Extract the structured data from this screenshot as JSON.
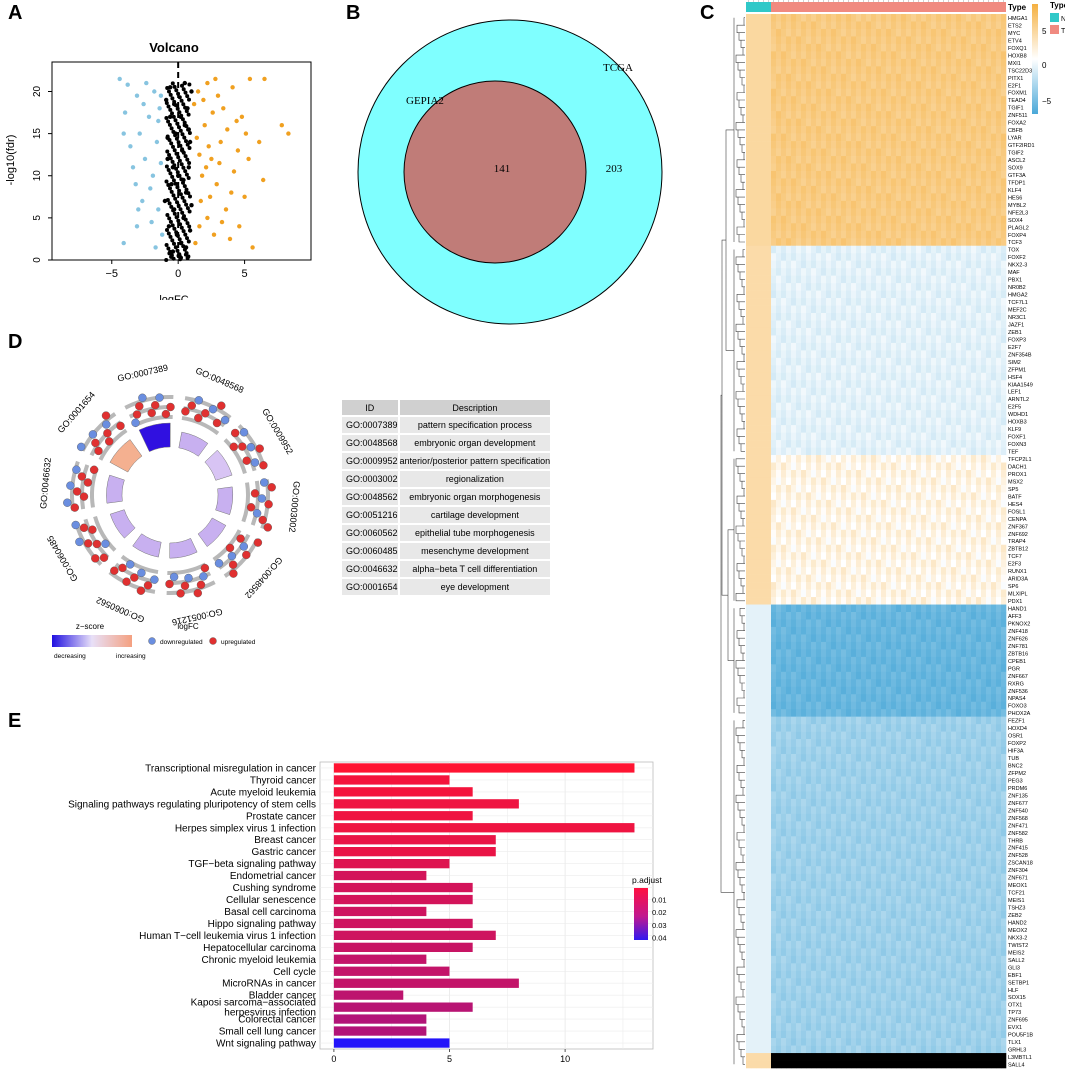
{
  "panels": {
    "A": "A",
    "B": "B",
    "C": "C",
    "D": "D",
    "E": "E"
  },
  "colors": {
    "up": "#f0a020",
    "down": "#87c4e0",
    "ns": "#000000",
    "tcga": "#7fffff",
    "gepia": "#c07c78",
    "heat_high": "#f5b040",
    "heat_low": "#4aa8d8",
    "type_n": "#30c8c8",
    "type_t": "#f08a80"
  },
  "chart_data": [
    {
      "type": "scatter",
      "panel": "A",
      "title": "Volcano",
      "xlabel": "logFC",
      "ylabel": "-log10(fdr)",
      "xlim": [
        -9.5,
        10
      ],
      "ylim": [
        0,
        23.5
      ],
      "xticks": [
        -5,
        0,
        5
      ],
      "xtick_labels": [
        "−5",
        "0",
        "5"
      ],
      "yticks": [
        0,
        5,
        10,
        15,
        20
      ],
      "ytick_labels": [
        "0",
        "5",
        "10",
        "15",
        "20"
      ],
      "threshold_x": 0,
      "series": [
        {
          "name": "upregulated",
          "color": "#f0a020",
          "points": [
            [
              1.5,
              20
            ],
            [
              2.2,
              21
            ],
            [
              3,
              19.5
            ],
            [
              4.1,
              20.5
            ],
            [
              5.4,
              21.5
            ],
            [
              6.5,
              21.5
            ],
            [
              7.8,
              16
            ],
            [
              8.3,
              15
            ],
            [
              6.1,
              14
            ],
            [
              4.5,
              13
            ],
            [
              3.2,
              14
            ],
            [
              2.5,
              12
            ],
            [
              1.8,
              10
            ],
            [
              2.9,
              9
            ],
            [
              4,
              8
            ],
            [
              5,
              7.5
            ],
            [
              6.4,
              9.5
            ],
            [
              3.6,
              6
            ],
            [
              2.2,
              5
            ],
            [
              1.6,
              4
            ],
            [
              2.7,
              3
            ],
            [
              3.9,
              2.5
            ],
            [
              5.6,
              1.5
            ],
            [
              1.3,
              2
            ],
            [
              2,
              16
            ],
            [
              2.6,
              17.5
            ],
            [
              3.4,
              18
            ],
            [
              4.8,
              17
            ],
            [
              1.4,
              14.5
            ],
            [
              2.1,
              11
            ],
            [
              3.1,
              11.5
            ],
            [
              4.2,
              10.5
            ],
            [
              5.3,
              12
            ],
            [
              1.7,
              7
            ],
            [
              2.4,
              7.5
            ],
            [
              3.3,
              4.5
            ],
            [
              4.6,
              4
            ],
            [
              1.2,
              18.5
            ],
            [
              1.9,
              19
            ],
            [
              3.7,
              15.5
            ],
            [
              2.8,
              21.5
            ],
            [
              4.4,
              16.5
            ],
            [
              5.1,
              15
            ],
            [
              1.6,
              12.5
            ],
            [
              2.3,
              13.5
            ]
          ]
        },
        {
          "name": "downregulated",
          "color": "#87c4e0",
          "points": [
            [
              -4.4,
              21.5
            ],
            [
              -3.8,
              20.8
            ],
            [
              -3.1,
              19.5
            ],
            [
              -2.4,
              21
            ],
            [
              -1.8,
              20
            ],
            [
              -1.4,
              18
            ],
            [
              -2.2,
              17
            ],
            [
              -2.9,
              15
            ],
            [
              -3.6,
              13.5
            ],
            [
              -4.1,
              15
            ],
            [
              -1.6,
              14
            ],
            [
              -2.5,
              12
            ],
            [
              -1.9,
              10
            ],
            [
              -3.2,
              9
            ],
            [
              -2.7,
              7
            ],
            [
              -1.5,
              6
            ],
            [
              -2,
              4.5
            ],
            [
              -3.1,
              4
            ],
            [
              -4.1,
              2
            ],
            [
              -1.2,
              3
            ],
            [
              -1.7,
              1.5
            ],
            [
              -1.3,
              11.5
            ],
            [
              -2.1,
              8.5
            ],
            [
              -3.4,
              11
            ],
            [
              -1.5,
              16.5
            ],
            [
              -2.6,
              18.5
            ],
            [
              -4,
              17.5
            ],
            [
              -1.3,
              19.5
            ],
            [
              -3,
              6
            ]
          ]
        },
        {
          "name": "not significant",
          "color": "#000000",
          "points": [
            [
              -0.8,
              12
            ],
            [
              -0.5,
              9
            ],
            [
              -0.3,
              6
            ],
            [
              -0.1,
              3
            ],
            [
              0.2,
              2
            ],
            [
              0.4,
              5
            ],
            [
              0.6,
              8
            ],
            [
              0.8,
              11
            ],
            [
              0.9,
              14
            ],
            [
              0.5,
              16
            ],
            [
              0.3,
              13
            ],
            [
              -0.2,
              15
            ],
            [
              -0.6,
              17
            ],
            [
              -0.9,
              19
            ],
            [
              0.7,
              18
            ],
            [
              1,
              20
            ],
            [
              -0.4,
              1
            ],
            [
              0.1,
              0.5
            ],
            [
              0.6,
              1.5
            ],
            [
              -0.7,
              4
            ],
            [
              0.9,
              3.5
            ],
            [
              -1,
              7
            ],
            [
              1,
              6.5
            ],
            [
              0,
              10
            ],
            [
              -0.4,
              11
            ],
            [
              0.4,
              9.5
            ],
            [
              -0.8,
              14.5
            ],
            [
              0.8,
              15.5
            ],
            [
              0.2,
              17
            ],
            [
              -0.3,
              18.5
            ],
            [
              0.5,
              21
            ],
            [
              -0.6,
              20.5
            ]
          ]
        }
      ]
    },
    {
      "type": "venn",
      "panel": "B",
      "sets": [
        {
          "name": "TCGA",
          "only": 203,
          "color": "#7fffff"
        },
        {
          "name": "GEPIA2",
          "only": 0,
          "color": "#c07c78"
        }
      ],
      "overlap": 141,
      "labels": [
        "TCGA",
        "GEPIA2",
        "141",
        "203"
      ]
    },
    {
      "type": "heatmap",
      "panel": "C",
      "annotation_title": "Type",
      "legend_title": "Type",
      "legend_entries": [
        {
          "label": "N",
          "color": "#30c8c8"
        },
        {
          "label": "T",
          "color": "#f08a80"
        }
      ],
      "color_scale": {
        "ticks": [
          "5",
          "0",
          "−5"
        ],
        "range": [
          -6,
          6
        ]
      },
      "genes": [
        "HMGA1",
        "ETS2",
        "MYC",
        "ETV4",
        "FOXQ1",
        "HOXB8",
        "MXI1",
        "TSC22D3",
        "PITX1",
        "E2F1",
        "FOXM1",
        "TEAD4",
        "TGIF1",
        "ZNF511",
        "FOXA2",
        "CBFB",
        "LYAR",
        "GTF2IRD1",
        "TGIF2",
        "ASCL2",
        "SOX9",
        "GTF3A",
        "TFDP1",
        "KLF4",
        "HES6",
        "MYBL2",
        "NFE2L3",
        "SOX4",
        "PLAGL2",
        "FOXP4",
        "TCF3",
        "TOX",
        "FOXF2",
        "NKX2-3",
        "MAF",
        "PBX1",
        "NR0B2",
        "HMGA2",
        "TCF7L1",
        "MEF2C",
        "NR3C1",
        "JAZF1",
        "ZEB1",
        "FOXP3",
        "E2F7",
        "ZNF354B",
        "SIM2",
        "ZFPM1",
        "HSF4",
        "KIAA1549",
        "LEF1",
        "ARNTL2",
        "E2F5",
        "WDHD1",
        "HOXB3",
        "KLF9",
        "FOXF1",
        "FOXN3",
        "TEF",
        "TFCP2L1",
        "DACH1",
        "PROX1",
        "MSX2",
        "SP5",
        "BATF",
        "HES4",
        "FOSL1",
        "CENPA",
        "ZNF367",
        "ZNF692",
        "TRAP4",
        "ZBTB12",
        "TCF7",
        "E2F3",
        "RUNX1",
        "ARID3A",
        "SP6",
        "MLXIPL",
        "PDX1",
        "HAND1",
        "AFF3",
        "PKNOX2",
        "ZNF418",
        "ZNF626",
        "ZNF781",
        "ZBTB16",
        "CPEB1",
        "PGR",
        "ZNF667",
        "RXRG",
        "ZNF536",
        "NPAS4",
        "FOXO3",
        "PHOX2A",
        "FEZF1",
        "HOXD4",
        "OSR1",
        "FOXP2",
        "HIF3A",
        "TUB",
        "BNC2",
        "ZFPM2",
        "PEG3",
        "PRDM6",
        "ZNF135",
        "ZNF677",
        "ZNF540",
        "ZNF568",
        "ZNF471",
        "ZNF582",
        "THRB",
        "ZNF415",
        "ZNF528",
        "ZSCAN18",
        "ZNF304",
        "ZNF671",
        "MEOX1",
        "TCF21",
        "MEIS1",
        "TSHZ3",
        "ZEB2",
        "HAND2",
        "MEOX2",
        "NKX3-2",
        "TWIST2",
        "MEIS2",
        "SALL2",
        "GLI3",
        "EBF1",
        "SETBP1",
        "HLF",
        "SOX15",
        "OTX1",
        "TP73",
        "ZNF695",
        "EVX1",
        "POU5F1B",
        "TLX1",
        "GRHL3",
        "L3MBTL1",
        "SALL4"
      ],
      "row_pattern": [
        1,
        1,
        1,
        1,
        1,
        1,
        1,
        1,
        1,
        1,
        1,
        1,
        1,
        1,
        1,
        1,
        1,
        1,
        1,
        1,
        1,
        1,
        1,
        1,
        1,
        1,
        1,
        1,
        1,
        1,
        1,
        0,
        0,
        0,
        0,
        0,
        0,
        0,
        0,
        0,
        0,
        0,
        0,
        0,
        0,
        0,
        0,
        0,
        0,
        0,
        0,
        0,
        0,
        0,
        0,
        0,
        0,
        0,
        0,
        0.3,
        0.3,
        0.3,
        0.3,
        0.3,
        0.3,
        0.3,
        0.3,
        0.3,
        0.3,
        0.3,
        0.3,
        0.3,
        0.3,
        0.3,
        0.3,
        0.3,
        0.3,
        0.3,
        0.3,
        -1,
        -1,
        -1,
        -1,
        -1,
        -1,
        -1,
        -1,
        -1,
        -1,
        -1,
        -1,
        -1,
        -1,
        -1,
        -0.6,
        -0.6,
        -0.6,
        -0.6,
        -0.6,
        -0.6,
        -0.6,
        -0.6,
        -0.6,
        -0.6,
        -0.6,
        -0.6,
        -0.6,
        -0.6,
        -0.6,
        -0.6,
        -0.6,
        -0.6,
        -0.6,
        -0.6,
        -0.6,
        -0.6,
        -0.6,
        -0.6,
        -0.6,
        -0.6,
        -0.6,
        -0.6,
        -0.6,
        -0.6,
        -0.6,
        -0.6,
        -0.6,
        -0.6,
        -0.6,
        -0.6,
        -0.6,
        -0.6,
        -0.6,
        -0.6,
        -0.6,
        -0.6,
        -0.6,
        -0.6,
        -0.6
      ]
    },
    {
      "type": "circos",
      "panel": "D",
      "terms": [
        "GO:0007389",
        "GO:0048568",
        "GO:0009952",
        "GO:0003002",
        "GO:0048562",
        "GO:0051216",
        "GO:0060562",
        "GO:0060485",
        "GO:0046632",
        "GO:0001654"
      ],
      "zscore": [
        -3,
        0.5,
        0.8,
        0.2,
        0.4,
        0.3,
        0.3,
        0.2,
        0.4,
        1.6
      ],
      "legend": {
        "zscore_title": "z−score",
        "zscore_low": "decreasing",
        "zscore_high": "increasing",
        "logfc_title": "logFC",
        "down_label": "downregulated",
        "up_label": "upregulated"
      }
    },
    {
      "type": "table",
      "panel": "D",
      "headers": [
        "ID",
        "Description"
      ],
      "rows": [
        [
          "GO:0007389",
          "pattern specification process"
        ],
        [
          "GO:0048568",
          "embryonic organ development"
        ],
        [
          "GO:0009952",
          "anterior/posterior pattern specification"
        ],
        [
          "GO:0003002",
          "regionalization"
        ],
        [
          "GO:0048562",
          "embryonic organ morphogenesis"
        ],
        [
          "GO:0051216",
          "cartilage development"
        ],
        [
          "GO:0060562",
          "epithelial tube morphogenesis"
        ],
        [
          "GO:0060485",
          "mesenchyme development"
        ],
        [
          "GO:0046632",
          "alpha−beta T cell differentiation"
        ],
        [
          "GO:0001654",
          "eye development"
        ]
      ]
    },
    {
      "type": "bar",
      "panel": "E",
      "orientation": "horizontal",
      "xlim": [
        -0.6,
        13.8
      ],
      "xticks": [
        0,
        5,
        10
      ],
      "categories": [
        "Transcriptional misregulation in cancer",
        "Thyroid cancer",
        "Acute myeloid leukemia",
        "Signaling pathways regulating pluripotency of stem cells",
        "Prostate cancer",
        "Herpes simplex virus 1 infection",
        "Breast cancer",
        "Gastric cancer",
        "TGF−beta signaling pathway",
        "Endometrial cancer",
        "Cushing syndrome",
        "Cellular senescence",
        "Basal cell carcinoma",
        "Hippo signaling pathway",
        "Human T−cell leukemia virus 1 infection",
        "Hepatocellular carcinoma",
        "Chronic myeloid leukemia",
        "Cell cycle",
        "MicroRNAs in cancer",
        "Bladder cancer",
        "Kaposi sarcoma−associated herpesvirus infection",
        "Colorectal cancer",
        "Small cell lung cancer",
        "Wnt signaling pathway"
      ],
      "values": [
        13,
        5,
        6,
        8,
        6,
        13,
        7,
        7,
        5,
        4,
        6,
        6,
        4,
        6,
        7,
        6,
        4,
        5,
        8,
        3,
        6,
        4,
        4,
        5
      ],
      "p_adjust": [
        0.001,
        0.003,
        0.003,
        0.004,
        0.004,
        0.004,
        0.005,
        0.005,
        0.007,
        0.009,
        0.009,
        0.009,
        0.01,
        0.01,
        0.01,
        0.011,
        0.012,
        0.012,
        0.012,
        0.013,
        0.014,
        0.015,
        0.015,
        0.041
      ],
      "legend_title": "p.adjust",
      "legend_ticks": [
        "0.01",
        "0.02",
        "0.03",
        "0.04"
      ],
      "legend_tick_values": [
        0.01,
        0.02,
        0.03,
        0.04
      ]
    }
  ]
}
